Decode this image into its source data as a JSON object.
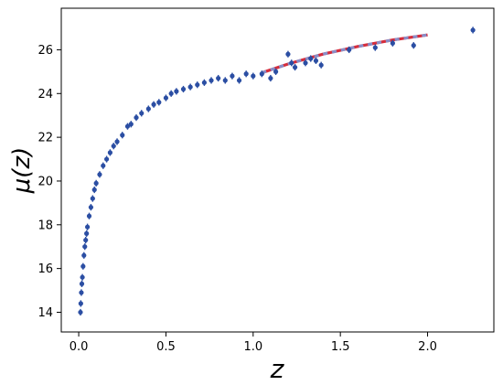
{
  "chart_data": {
    "type": "scatter",
    "title": "",
    "xlabel": "z",
    "ylabel": "μ(z)",
    "xlim": [
      -0.1,
      2.38
    ],
    "ylim": [
      13.1,
      27.9
    ],
    "xticks": [
      0.0,
      0.5,
      1.0,
      1.5,
      2.0
    ],
    "xtick_labels": [
      "0.0",
      "0.5",
      "1.0",
      "1.5",
      "2.0"
    ],
    "yticks": [
      14,
      16,
      18,
      20,
      22,
      24,
      26
    ],
    "ytick_labels": [
      "14",
      "16",
      "18",
      "20",
      "22",
      "24",
      "26"
    ],
    "grid": false,
    "legend": "none",
    "colors": {
      "points": "#2b4ea3",
      "fit_line": "#d62d3c",
      "fit_line_dash": "#8a8fc8"
    },
    "series": [
      {
        "type": "scatter_with_errorbars",
        "x": [
          0.01,
          0.012,
          0.015,
          0.018,
          0.021,
          0.025,
          0.03,
          0.035,
          0.04,
          0.045,
          0.05,
          0.06,
          0.07,
          0.08,
          0.09,
          0.1,
          0.12,
          0.14,
          0.16,
          0.18,
          0.2,
          0.22,
          0.25,
          0.28,
          0.3,
          0.33,
          0.36,
          0.4,
          0.43,
          0.46,
          0.5,
          0.53,
          0.56,
          0.6,
          0.64,
          0.68,
          0.72,
          0.76,
          0.8,
          0.84,
          0.88,
          0.92,
          0.96,
          1.0,
          1.05,
          1.1,
          1.13,
          1.2,
          1.22,
          1.24,
          1.3,
          1.33,
          1.36,
          1.39,
          1.55,
          1.7,
          1.8,
          1.92,
          2.26
        ],
        "y": [
          14.0,
          14.4,
          14.9,
          15.3,
          15.6,
          16.1,
          16.6,
          17.0,
          17.3,
          17.6,
          17.9,
          18.4,
          18.8,
          19.2,
          19.6,
          19.9,
          20.3,
          20.7,
          21.0,
          21.3,
          21.6,
          21.8,
          22.1,
          22.5,
          22.6,
          22.9,
          23.1,
          23.3,
          23.5,
          23.6,
          23.8,
          24.0,
          24.1,
          24.2,
          24.3,
          24.4,
          24.5,
          24.6,
          24.7,
          24.6,
          24.8,
          24.6,
          24.9,
          24.8,
          24.9,
          24.7,
          25.0,
          25.8,
          25.4,
          25.2,
          25.4,
          25.6,
          25.5,
          25.3,
          26.0,
          26.1,
          26.3,
          26.2,
          26.9
        ],
        "yerr": 0.15
      },
      {
        "type": "line",
        "x": [
          1.05,
          1.2,
          1.4,
          1.6,
          1.8,
          2.0
        ],
        "y": [
          24.95,
          25.35,
          25.8,
          26.15,
          26.45,
          26.68
        ]
      }
    ]
  }
}
